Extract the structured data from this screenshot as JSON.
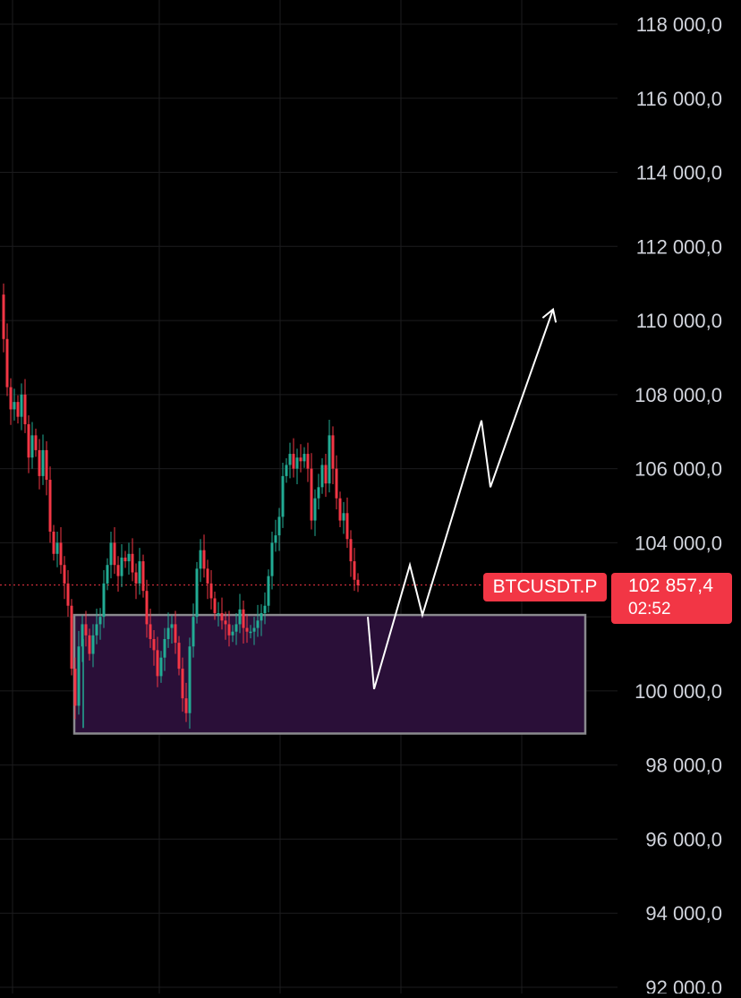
{
  "chart_data": {
    "type": "candlestick",
    "y_axis": {
      "position": "right",
      "ylim": [
        91800,
        119000
      ],
      "tick_labels": [
        "118 000,0",
        "116 000,0",
        "114 000,0",
        "112 000,0",
        "110 000,0",
        "108 000,0",
        "106 000,0",
        "104 000,0",
        "100 000,0",
        "98 000,0",
        "96 000,0",
        "94 000,0",
        "92 000,0"
      ],
      "tick_values": [
        118000,
        116000,
        114000,
        112000,
        110000,
        108000,
        106000,
        104000,
        100000,
        98000,
        96000,
        94000,
        92000
      ]
    },
    "grid": true,
    "symbol": "BTCUSDT.P",
    "last_price": 102857.4,
    "last_price_label": "102 857,4",
    "countdown": "02:52",
    "price_path": [
      [
        0,
        110700
      ],
      [
        4,
        109500
      ],
      [
        8,
        108200
      ],
      [
        12,
        107600
      ],
      [
        16,
        107800
      ],
      [
        20,
        107400
      ],
      [
        24,
        108000
      ],
      [
        28,
        107200
      ],
      [
        32,
        106300
      ],
      [
        36,
        106900
      ],
      [
        40,
        106500
      ],
      [
        44,
        105800
      ],
      [
        48,
        106500
      ],
      [
        52,
        105700
      ],
      [
        56,
        104300
      ],
      [
        60,
        103700
      ],
      [
        64,
        104000
      ],
      [
        68,
        103400
      ],
      [
        72,
        102900
      ],
      [
        76,
        102300
      ],
      [
        80,
        100600
      ],
      [
        84,
        99600
      ],
      [
        88,
        101200
      ],
      [
        92,
        101800
      ],
      [
        96,
        101500
      ],
      [
        100,
        101000
      ],
      [
        104,
        101500
      ],
      [
        108,
        101800
      ],
      [
        112,
        102000
      ],
      [
        116,
        102900
      ],
      [
        120,
        103400
      ],
      [
        124,
        104000
      ],
      [
        128,
        103400
      ],
      [
        132,
        103100
      ],
      [
        136,
        103600
      ],
      [
        140,
        103500
      ],
      [
        144,
        103700
      ],
      [
        148,
        103200
      ],
      [
        152,
        102900
      ],
      [
        156,
        103500
      ],
      [
        160,
        102700
      ],
      [
        164,
        101800
      ],
      [
        168,
        101400
      ],
      [
        172,
        101100
      ],
      [
        176,
        100400
      ],
      [
        180,
        100900
      ],
      [
        184,
        101400
      ],
      [
        188,
        101700
      ],
      [
        192,
        101800
      ],
      [
        196,
        101300
      ],
      [
        200,
        100600
      ],
      [
        204,
        99800
      ],
      [
        208,
        99400
      ],
      [
        212,
        101200
      ],
      [
        216,
        102000
      ],
      [
        220,
        103300
      ],
      [
        224,
        103800
      ],
      [
        228,
        103300
      ],
      [
        232,
        102900
      ],
      [
        236,
        102500
      ],
      [
        240,
        102100
      ],
      [
        244,
        102100
      ],
      [
        248,
        101900
      ],
      [
        252,
        101800
      ],
      [
        256,
        101500
      ],
      [
        260,
        101600
      ],
      [
        264,
        101800
      ],
      [
        268,
        102200
      ],
      [
        272,
        101700
      ],
      [
        276,
        101600
      ],
      [
        280,
        101600
      ],
      [
        284,
        101700
      ],
      [
        288,
        101900
      ],
      [
        292,
        102100
      ],
      [
        296,
        102300
      ],
      [
        300,
        103100
      ],
      [
        304,
        104000
      ],
      [
        308,
        104200
      ],
      [
        312,
        104700
      ],
      [
        316,
        105800
      ],
      [
        320,
        106100
      ],
      [
        324,
        106400
      ],
      [
        328,
        106000
      ],
      [
        332,
        106300
      ],
      [
        336,
        106200
      ],
      [
        340,
        106400
      ],
      [
        344,
        106000
      ],
      [
        348,
        104600
      ],
      [
        352,
        105200
      ],
      [
        356,
        105500
      ],
      [
        360,
        106100
      ],
      [
        364,
        105600
      ],
      [
        368,
        106900
      ],
      [
        372,
        106000
      ],
      [
        376,
        105200
      ],
      [
        380,
        104600
      ],
      [
        384,
        104800
      ],
      [
        388,
        104100
      ],
      [
        392,
        103500
      ],
      [
        396,
        103000
      ],
      [
        400,
        102850
      ]
    ],
    "annotations": {
      "zone": {
        "low": 98850,
        "high": 102050
      },
      "projection": [
        {
          "x": 411,
          "y": 102000
        },
        {
          "x": 418,
          "y": 100050
        },
        {
          "x": 458,
          "y": 103400
        },
        {
          "x": 472,
          "y": 102050
        },
        {
          "x": 538,
          "y": 107300
        },
        {
          "x": 548,
          "y": 105500
        },
        {
          "x": 618,
          "y": 110300
        }
      ]
    }
  },
  "colors": {
    "background": "#000000",
    "grid": "#1c1c1e",
    "axis_text": "#d1d4dc",
    "bull": "#22ab94",
    "bear": "#f23645",
    "zone_fill": "#2a0f38",
    "zone_border": "#8a8a8e",
    "projection": "#ffffff"
  }
}
